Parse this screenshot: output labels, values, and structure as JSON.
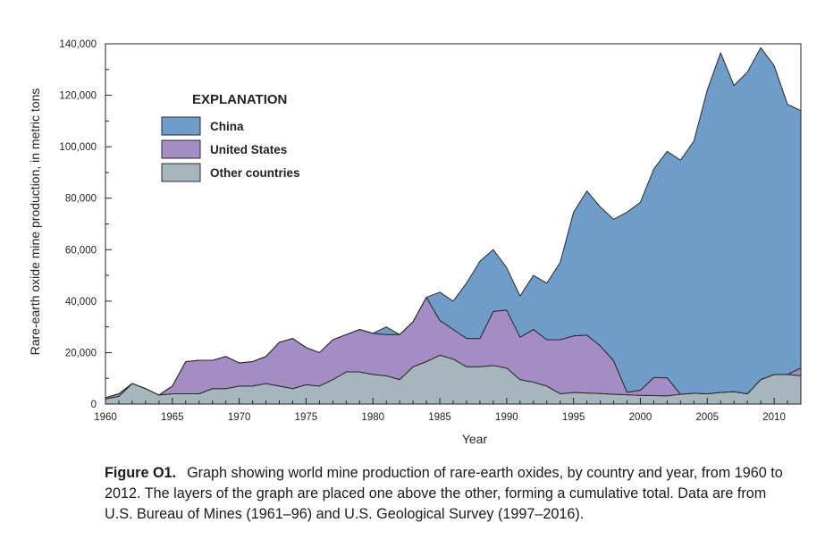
{
  "chart_data": {
    "type": "area",
    "stacked": true,
    "xlabel": "Year",
    "ylabel": "Rare-earth oxide mine production, in metric tons",
    "xlim": [
      1960,
      2012
    ],
    "ylim": [
      0,
      140000
    ],
    "x_ticks": [
      "1960",
      "1965",
      "1970",
      "1975",
      "1980",
      "1985",
      "1990",
      "1995",
      "2000",
      "2005",
      "2010"
    ],
    "y_ticks": [
      "0",
      "20,000",
      "40,000",
      "60,000",
      "80,000",
      "100,000",
      "120,000",
      "140,000"
    ],
    "legend_title": "EXPLANATION",
    "legend_position": "top-left",
    "x": [
      1960,
      1961,
      1962,
      1963,
      1964,
      1965,
      1966,
      1967,
      1968,
      1969,
      1970,
      1971,
      1972,
      1973,
      1974,
      1975,
      1976,
      1977,
      1978,
      1979,
      1980,
      1981,
      1982,
      1983,
      1984,
      1985,
      1986,
      1987,
      1988,
      1989,
      1990,
      1991,
      1992,
      1993,
      1994,
      1995,
      1996,
      1997,
      1998,
      1999,
      2000,
      2001,
      2002,
      2003,
      2004,
      2005,
      2006,
      2007,
      2008,
      2009,
      2010,
      2011,
      2012
    ],
    "series": [
      {
        "name": "Other countries",
        "color": "#a7b6bd",
        "values": [
          2000,
          3000,
          8000,
          6000,
          3500,
          4000,
          4000,
          4000,
          6000,
          6000,
          7000,
          7000,
          8000,
          7000,
          6000,
          7500,
          7000,
          9500,
          12500,
          12500,
          11500,
          11000,
          9500,
          14500,
          16500,
          19000,
          17500,
          14500,
          14500,
          15000,
          14000,
          9500,
          8500,
          7000,
          4000,
          4500,
          4300,
          4100,
          3800,
          3600,
          3400,
          3300,
          3200,
          3800,
          4200,
          4000,
          4500,
          4800,
          4000,
          9500,
          11500,
          11500,
          11000
        ]
      },
      {
        "name": "United States",
        "color": "#a38dc4",
        "values": [
          500,
          1000,
          0,
          0,
          0,
          3000,
          12500,
          13000,
          11000,
          12500,
          9000,
          9500,
          10500,
          17000,
          19500,
          14500,
          13000,
          15500,
          14500,
          16500,
          16000,
          16000,
          17500,
          17500,
          25000,
          13500,
          11500,
          11000,
          11000,
          21000,
          22500,
          16500,
          20500,
          18000,
          21000,
          22000,
          22500,
          18500,
          13000,
          1000,
          2000,
          7000,
          7000,
          0,
          0,
          0,
          0,
          0,
          0,
          0,
          0,
          0,
          3000
        ]
      },
      {
        "name": "China",
        "color": "#6f9cc8",
        "values": [
          0,
          0,
          0,
          0,
          0,
          0,
          0,
          0,
          0,
          0,
          0,
          0,
          0,
          0,
          0,
          0,
          0,
          0,
          0,
          0,
          0,
          3000,
          0,
          0,
          0,
          11000,
          11000,
          21500,
          30000,
          24000,
          16500,
          16000,
          21000,
          22000,
          30000,
          48000,
          56000,
          54000,
          55000,
          70000,
          73000,
          81000,
          88000,
          91000,
          98000,
          118000,
          132000,
          119000,
          125000,
          129000,
          120000,
          105000,
          100000
        ]
      }
    ]
  },
  "caption": {
    "label": "Figure O1.",
    "text": "Graph showing world mine production of rare-earth oxides, by country and year, from 1960 to 2012. The layers of the graph are placed one above the other, forming a cumulative total. Data are from U.S. Bureau of Mines (1961–96) and U.S. Geological Survey (1997–2016)."
  }
}
